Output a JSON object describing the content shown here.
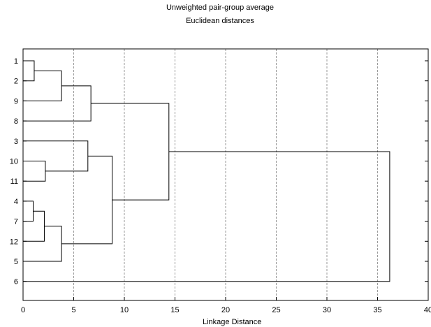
{
  "chart_data": {
    "type": "dendrogram",
    "title": "Unweighted pair-group average",
    "subtitle": "Euclidean distances",
    "xlabel": "Linkage Distance",
    "xlim": [
      0,
      40
    ],
    "xticks": [
      0,
      5,
      10,
      15,
      20,
      25,
      30,
      35,
      40
    ],
    "grid": "vertical dashed",
    "leaves": [
      "1",
      "2",
      "9",
      "8",
      "3",
      "10",
      "11",
      "4",
      "7",
      "12",
      "5",
      "6"
    ],
    "merges": [
      {
        "a": "1",
        "b": "2",
        "distance": 1.1
      },
      {
        "a": "1,2",
        "b": "9",
        "distance": 3.8
      },
      {
        "a": "1,2,9",
        "b": "8",
        "distance": 6.7
      },
      {
        "a": "10",
        "b": "11",
        "distance": 2.2
      },
      {
        "a": "3",
        "b": "10,11",
        "distance": 6.4
      },
      {
        "a": "4",
        "b": "7",
        "distance": 1.0
      },
      {
        "a": "4,7",
        "b": "12",
        "distance": 2.1
      },
      {
        "a": "4,7,12",
        "b": "5",
        "distance": 3.8
      },
      {
        "a": "3,10,11",
        "b": "4,7,12,5",
        "distance": 8.8
      },
      {
        "a": "1,2,9,8",
        "b": "3,10,11,4,7,12,5",
        "distance": 14.4
      },
      {
        "a": "1,2,9,8,3,10,11,4,7,12,5",
        "b": "6",
        "distance": 36.2
      }
    ]
  }
}
